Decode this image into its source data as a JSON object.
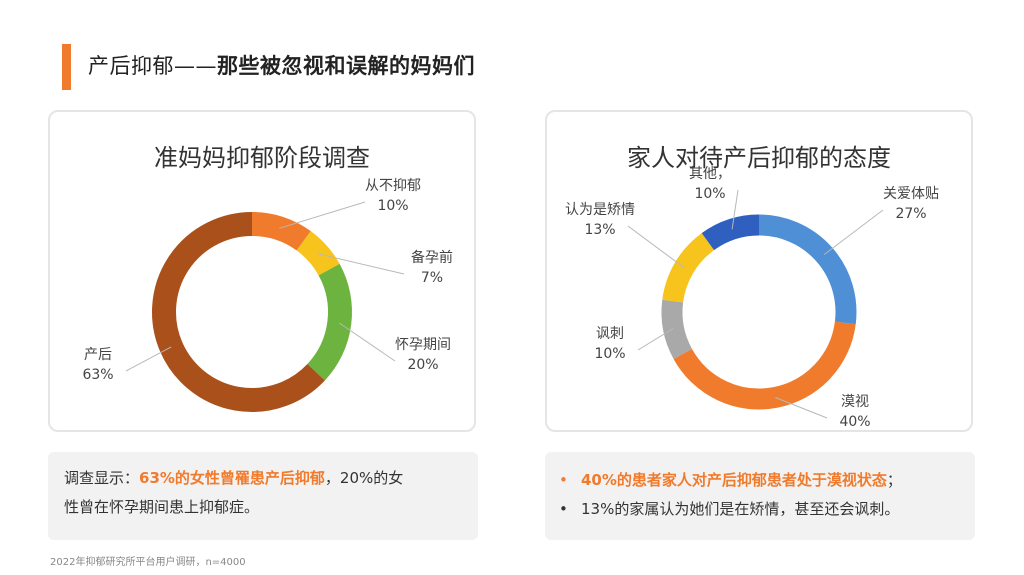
{
  "colors": {
    "accent": "#f07b2c"
  },
  "slide": {
    "title_part1": "产后抑郁——",
    "title_part2": "那些被忽视和误解的妈妈们"
  },
  "chart_data": [
    {
      "type": "pie",
      "style": "donut",
      "title": "准妈妈抑郁阶段调查",
      "slices": [
        {
          "label": "从不抑郁",
          "value": 10,
          "value_text": "10%",
          "color": "#f07b2c"
        },
        {
          "label": "备孕前",
          "value": 7,
          "value_text": "7%",
          "color": "#f7c41e"
        },
        {
          "label": "怀孕期间",
          "value": 20,
          "value_text": "20%",
          "color": "#6db33f"
        },
        {
          "label": "产后",
          "value": 63,
          "value_text": "63%",
          "color": "#a9501b"
        }
      ]
    },
    {
      "type": "pie",
      "style": "donut",
      "title": "家人对待产后抑郁的态度",
      "slices": [
        {
          "label": "关爱体贴",
          "value": 27,
          "value_text": "27%",
          "color": "#4f8fd6"
        },
        {
          "label": "漠视",
          "value": 40,
          "value_text": "40%",
          "color": "#f07b2c"
        },
        {
          "label": "讽刺",
          "value": 10,
          "value_text": "10%",
          "color": "#a9a9a9"
        },
        {
          "label": "认为是矫情",
          "value": 13,
          "value_text": "13%",
          "color": "#f7c41e"
        },
        {
          "label": "其他，",
          "value": 10,
          "value_text": "10%",
          "color": "#2f5fbf"
        }
      ]
    }
  ],
  "note_left": {
    "prefix": "调查显示：",
    "highlight": "63%的女性曾罹患产后抑郁",
    "line1_rest": "，20%的女",
    "line2": "性曾在怀孕期间患上抑郁症。"
  },
  "note_right": {
    "bullet": "•",
    "line1_highlight": "40%的患者家人对产后抑郁患者处于漠视状态",
    "line1_end": "；",
    "line2": "13%的家属认为她们是在矫情，甚至还会讽刺。"
  },
  "footnote": "2022年抑郁研究所平台用户调研，n=4000"
}
